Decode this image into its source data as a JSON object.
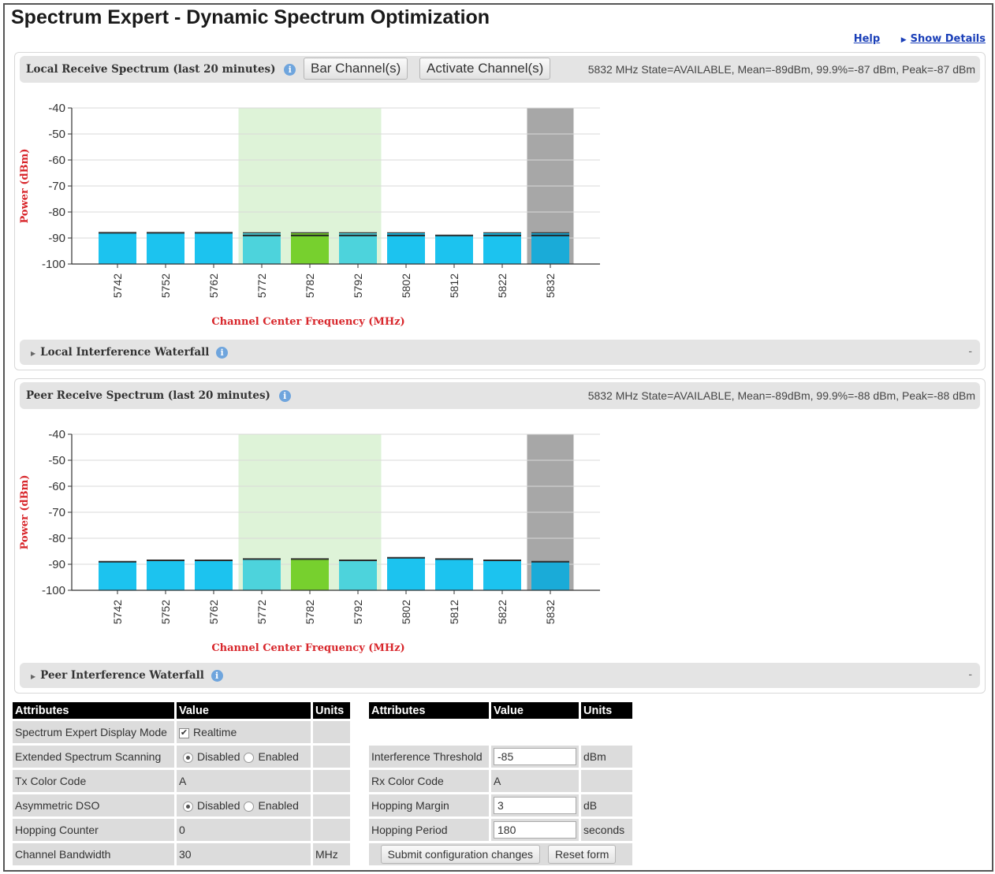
{
  "page": {
    "title": "Spectrum Expert - Dynamic Spectrum Optimization"
  },
  "links": {
    "help": "Help",
    "show_details": "Show Details"
  },
  "local": {
    "title": "Local Receive Spectrum (last 20 minutes)",
    "bar_button": "Bar Channel(s)",
    "activate_button": "Activate Channel(s)",
    "state": "5832 MHz State=AVAILABLE, Mean=-89dBm, 99.9%=-87 dBm, Peak=-87 dBm",
    "waterfall": "Local Interference Waterfall",
    "collapse": "-"
  },
  "peer": {
    "title": "Peer Receive Spectrum (last 20 minutes)",
    "state": "5832 MHz State=AVAILABLE, Mean=-89dBm, 99.9%=-88 dBm, Peak=-88 dBm",
    "waterfall": "Peer Interference Waterfall",
    "collapse": "-"
  },
  "chart_data": [
    {
      "type": "bar",
      "xlabel": "Channel Center Frequency (MHz)",
      "ylabel": "Power (dBm)",
      "ylim": [
        -100,
        -40
      ],
      "yticks": [
        -40,
        -50,
        -60,
        -70,
        -80,
        -90,
        -100
      ],
      "categories": [
        "5742",
        "5752",
        "5762",
        "5772",
        "5782",
        "5792",
        "5802",
        "5812",
        "5822",
        "5832"
      ],
      "series": [
        {
          "values": [
            -88,
            -88,
            -88,
            -89,
            -89,
            -89,
            -89,
            -89,
            -89,
            -89
          ]
        },
        {
          "values": [
            -88,
            -88,
            -88,
            -88,
            -88,
            -88,
            -88,
            -89,
            -88,
            -88
          ]
        }
      ],
      "bar_colors": [
        "#1cc3ef",
        "#1cc3ef",
        "#1cc3ef",
        "#4dd3dc",
        "#77d02e",
        "#4dd3dc",
        "#1cc3ef",
        "#1cc3ef",
        "#1cc3ef",
        "#1aabd8"
      ],
      "green_band": [
        "5772",
        "5792"
      ],
      "grey_band": [
        "5832"
      ],
      "grid": true
    },
    {
      "type": "bar",
      "xlabel": "Channel Center Frequency (MHz)",
      "ylabel": "Power (dBm)",
      "ylim": [
        -100,
        -40
      ],
      "yticks": [
        -40,
        -50,
        -60,
        -70,
        -80,
        -90,
        -100
      ],
      "categories": [
        "5742",
        "5752",
        "5762",
        "5772",
        "5782",
        "5792",
        "5802",
        "5812",
        "5822",
        "5832"
      ],
      "series": [
        {
          "values": [
            -89,
            -88.5,
            -88.5,
            -88,
            -88,
            -88.5,
            -87.5,
            -88,
            -88.5,
            -89
          ]
        },
        {
          "values": [
            -89,
            -88.5,
            -88.5,
            -88,
            -88,
            -88.5,
            -87.5,
            -88,
            -88.5,
            -89
          ]
        }
      ],
      "bar_colors": [
        "#1cc3ef",
        "#1cc3ef",
        "#1cc3ef",
        "#4dd3dc",
        "#77d02e",
        "#4dd3dc",
        "#1cc3ef",
        "#1cc3ef",
        "#1cc3ef",
        "#1aabd8"
      ],
      "green_band": [
        "5772",
        "5792"
      ],
      "grey_band": [
        "5832"
      ],
      "grid": true
    }
  ],
  "table_left": {
    "headers": [
      "Attributes",
      "Value",
      "Units"
    ],
    "display_mode": {
      "label": "Spectrum Expert Display Mode",
      "value": "Realtime"
    },
    "extended_scanning": {
      "label": "Extended Spectrum Scanning",
      "opt1": "Disabled",
      "opt2": "Enabled"
    },
    "tx_color": {
      "label": "Tx Color Code",
      "value": "A"
    },
    "asym_dso": {
      "label": "Asymmetric DSO",
      "opt1": "Disabled",
      "opt2": "Enabled"
    },
    "hop_counter": {
      "label": "Hopping Counter",
      "value": "0"
    },
    "bandwidth": {
      "label": "Channel Bandwidth",
      "value": "30",
      "unit": "MHz"
    }
  },
  "table_right": {
    "headers": [
      "Attributes",
      "Value",
      "Units"
    ],
    "threshold": {
      "label": "Interference Threshold",
      "value": "-85",
      "unit": "dBm"
    },
    "rx_color": {
      "label": "Rx Color Code",
      "value": "A"
    },
    "hop_margin": {
      "label": "Hopping Margin",
      "value": "3",
      "unit": "dB"
    },
    "hop_period": {
      "label": "Hopping Period",
      "value": "180",
      "unit": "seconds"
    },
    "submit": "Submit configuration changes",
    "reset": "Reset form"
  }
}
